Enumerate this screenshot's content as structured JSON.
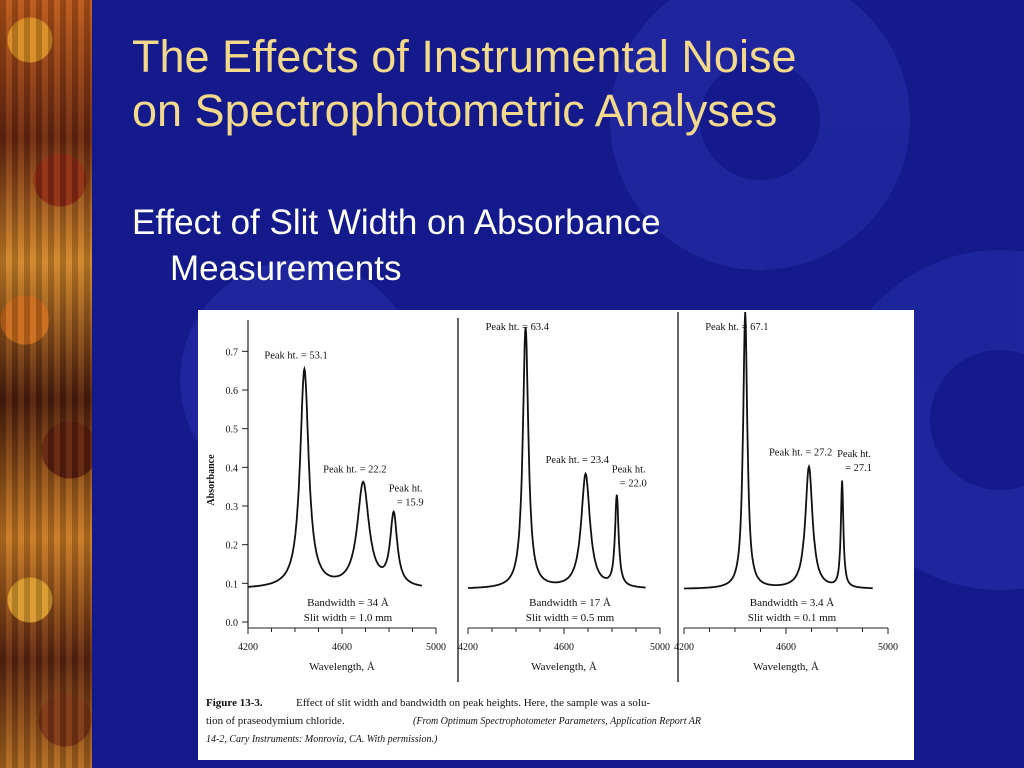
{
  "slide": {
    "title_line1": "The Effects of Instrumental Noise",
    "title_line2": "on Spectrophotometric Analyses",
    "bullet_line1": "Effect of Slit Width on Absorbance",
    "bullet_line2": "Measurements"
  },
  "colors": {
    "background": "#141a8c",
    "title": "#f3d98b",
    "bullet": "#ffffff",
    "ink": "#111111"
  },
  "chart_data": [
    {
      "type": "line",
      "xlabel": "Wavelength, Å",
      "ylabel": "Absorbance",
      "xticks": [
        4200,
        4600,
        5000
      ],
      "yticks": [
        0.0,
        0.1,
        0.2,
        0.3,
        0.4,
        0.5,
        0.6,
        0.7
      ],
      "xlim": [
        4200,
        5000
      ],
      "ylim": [
        0,
        0.75
      ],
      "baseline": 0.085,
      "peaks": [
        {
          "x": 4440,
          "y": 0.65,
          "width": 22,
          "label": "Peak ht. = 53.1"
        },
        {
          "x": 4690,
          "y": 0.355,
          "width": 30,
          "label": "Peak ht. = 22.2"
        },
        {
          "x": 4820,
          "y": 0.27,
          "width": 18,
          "label_line1": "Peak ht.",
          "label_line2": "= 15.9"
        }
      ],
      "caption_line1": "Bandwidth = 34 Å",
      "caption_line2": "Slit width = 1.0 mm"
    },
    {
      "type": "line",
      "xlabel": "Wavelength, Å",
      "xticks": [
        4200,
        4600,
        5000
      ],
      "xlim": [
        4200,
        5000
      ],
      "ylim": [
        0,
        0.75
      ],
      "baseline": 0.085,
      "peaks": [
        {
          "x": 4440,
          "y": 0.76,
          "width": 14,
          "label": "Peak ht. = 63.4"
        },
        {
          "x": 4690,
          "y": 0.38,
          "width": 22,
          "label": "Peak ht. = 23.4"
        },
        {
          "x": 4820,
          "y": 0.32,
          "width": 9,
          "label_line1": "Peak ht.",
          "label_line2": "= 22.0"
        }
      ],
      "caption_line1": "Bandwidth = 17 Å",
      "caption_line2": "Slit width = 0.5 mm"
    },
    {
      "type": "line",
      "xlabel": "Wavelength, Å",
      "xticks": [
        4200,
        4600,
        5000
      ],
      "xlim": [
        4200,
        5000
      ],
      "ylim": [
        0,
        0.75
      ],
      "baseline": 0.085,
      "peaks": [
        {
          "x": 4440,
          "y": 0.8,
          "width": 10,
          "label": "Peak ht. = 67.1"
        },
        {
          "x": 4690,
          "y": 0.4,
          "width": 17,
          "label": "Peak ht. = 27.2"
        },
        {
          "x": 4820,
          "y": 0.36,
          "width": 6,
          "label_line1": "Peak ht.",
          "label_line2": "= 27.1"
        }
      ],
      "caption_line1": "Bandwidth = 3.4 Å",
      "caption_line2": "Slit width = 0.1 mm"
    }
  ],
  "figure_caption": {
    "label": "Figure 13-3.",
    "line1": "Effect of slit width and bandwidth on peak heights. Here, the sample was a solu-",
    "line2a": "tion of praseodymium chloride.",
    "line2b": "(From Optimum Spectrophotometer Parameters, Application Report AR",
    "line3": "14-2, Cary Instruments: Monrovia, CA. With permission.)"
  }
}
